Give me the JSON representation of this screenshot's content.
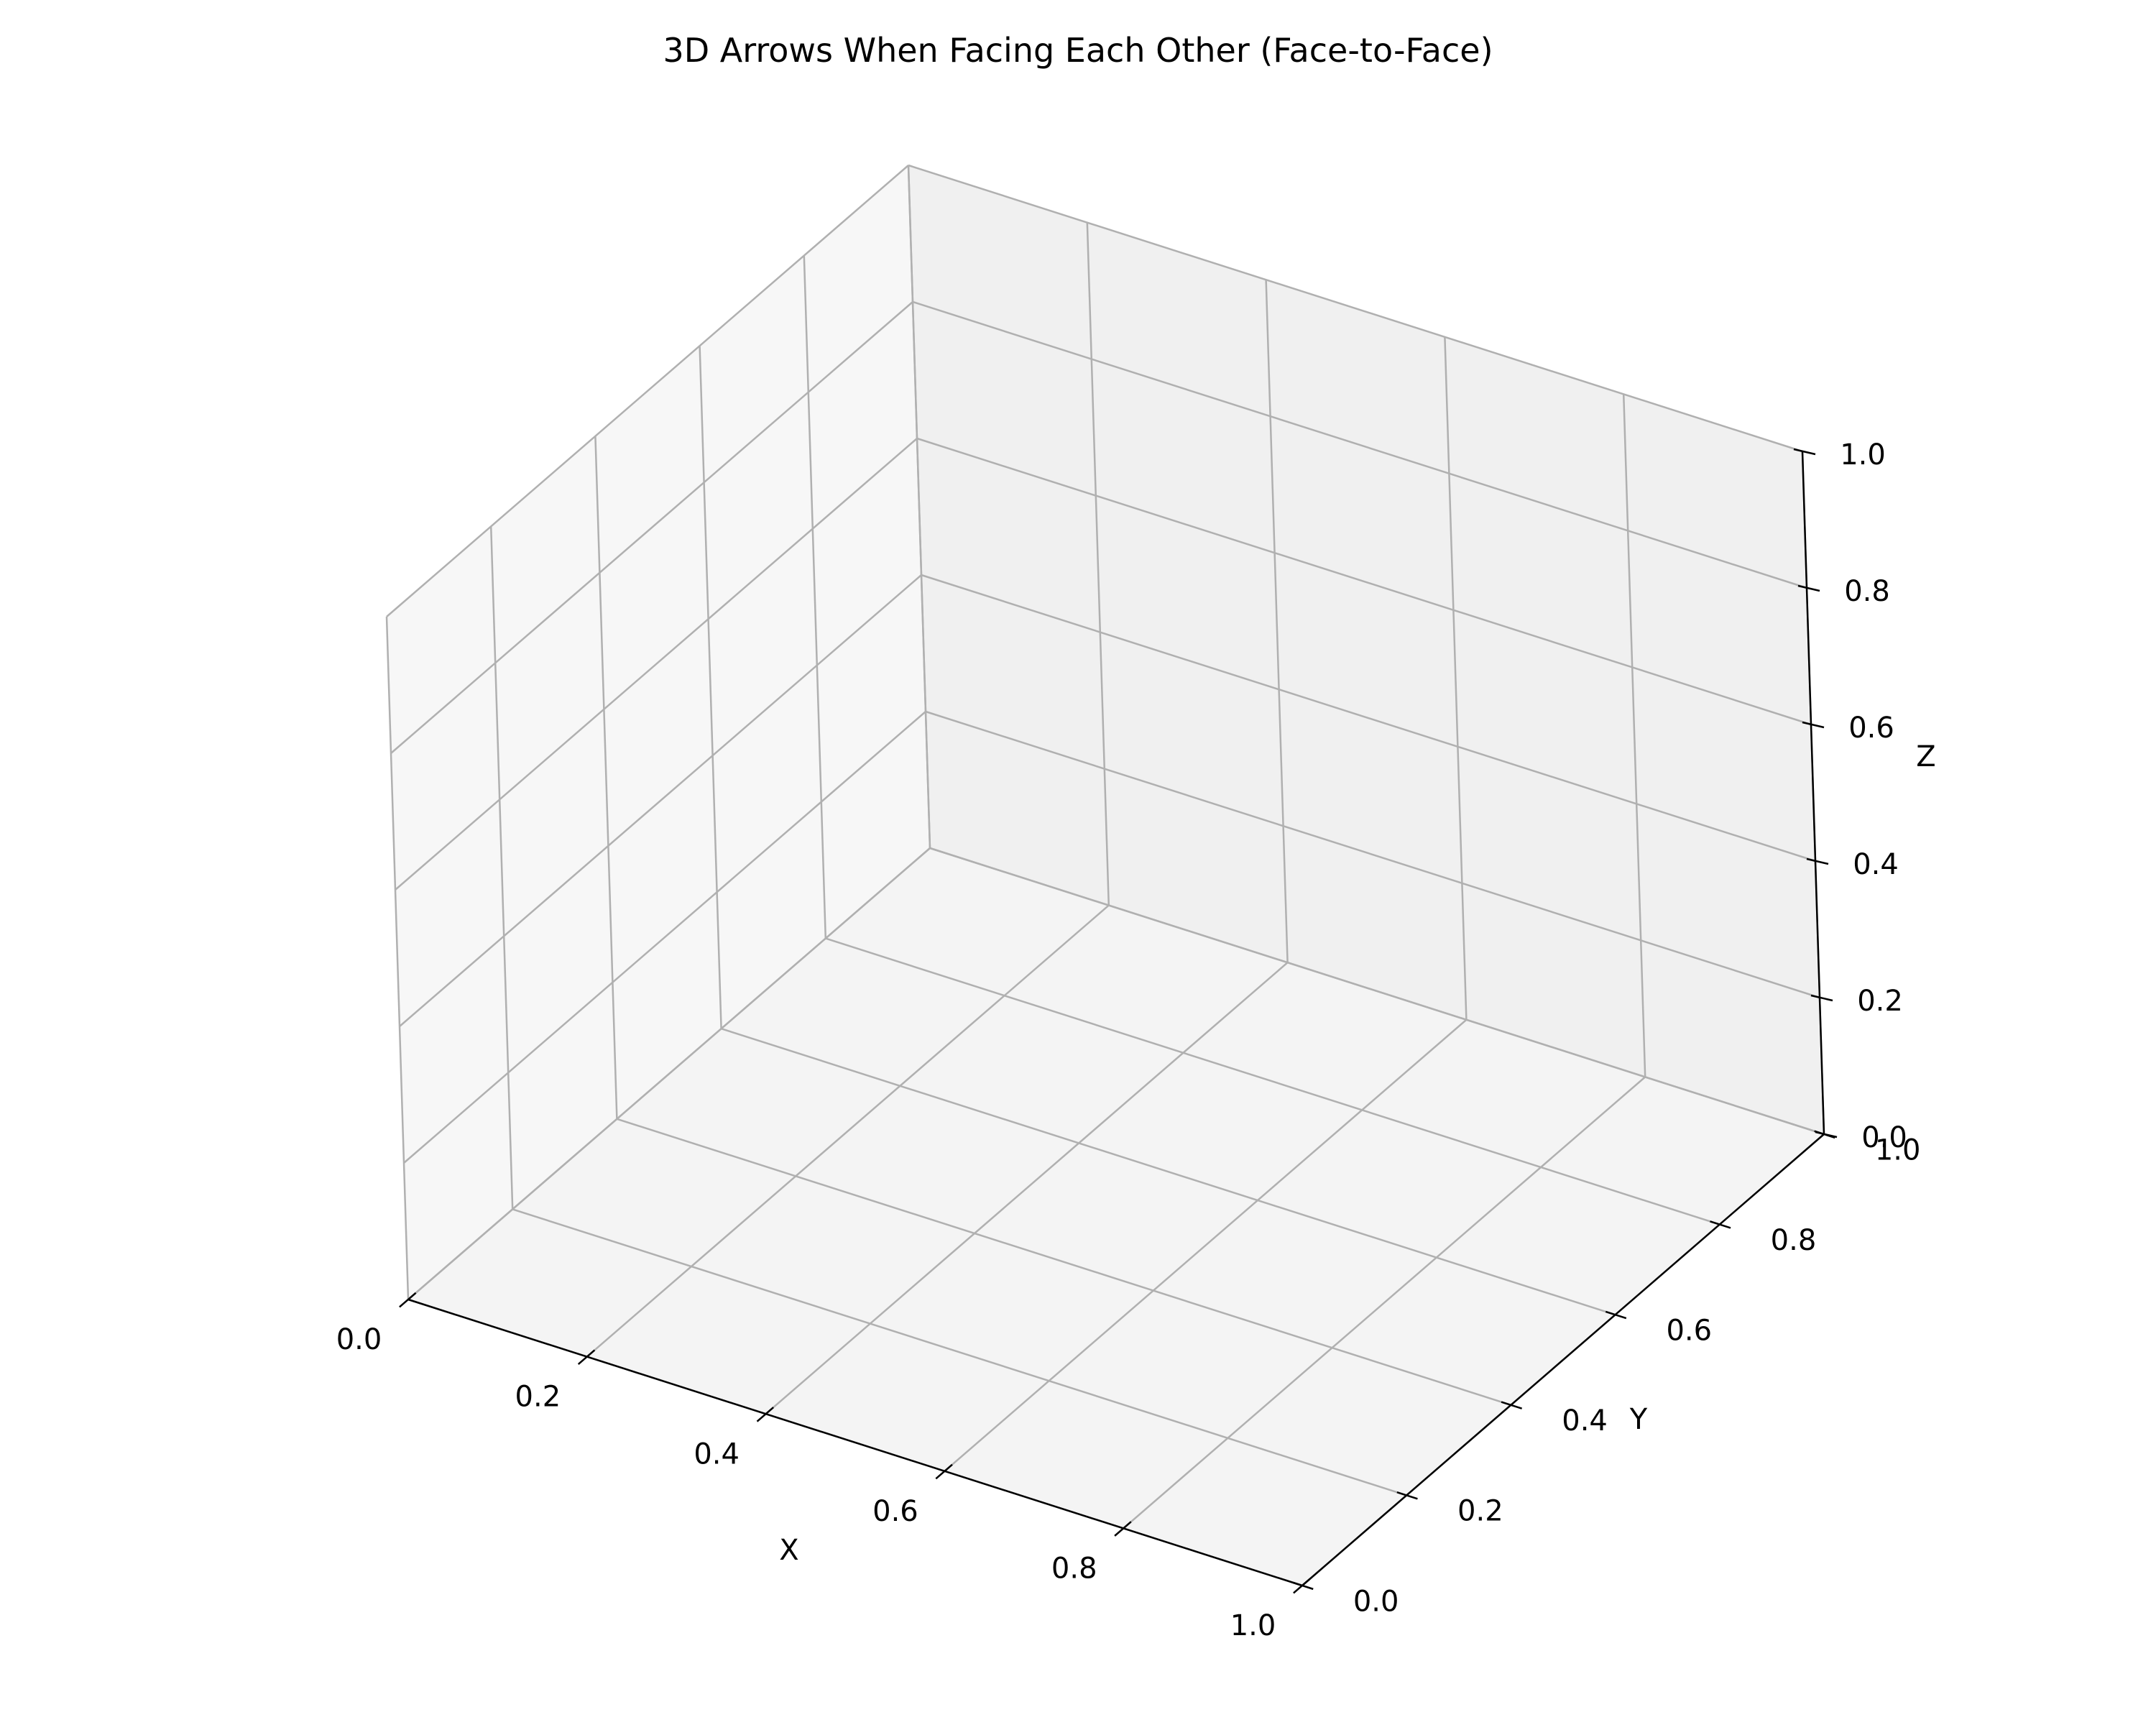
{
  "chart_data": {
    "type": "scatter",
    "projection": "3d",
    "title": "3D Arrows When Facing Each Other (Face-to-Face)",
    "xlabel": "X",
    "ylabel": "Y",
    "zlabel": "Z",
    "xlim": [
      0,
      1
    ],
    "ylim": [
      0,
      1
    ],
    "zlim": [
      0,
      1
    ],
    "xticks": [
      "0.0",
      "0.2",
      "0.4",
      "0.6",
      "0.8",
      "1.0"
    ],
    "yticks": [
      "0.0",
      "0.2",
      "0.4",
      "0.6",
      "0.8",
      "1.0"
    ],
    "zticks": [
      "0.0",
      "0.2",
      "0.4",
      "0.6",
      "0.8",
      "1.0"
    ],
    "grid": true,
    "series": []
  },
  "colors": {
    "pane_left": "#f7f7f7",
    "pane_back": "#f0f0f0",
    "pane_floor": "#f4f4f4",
    "grid": "#b0b0b0",
    "axis": "#000000"
  }
}
